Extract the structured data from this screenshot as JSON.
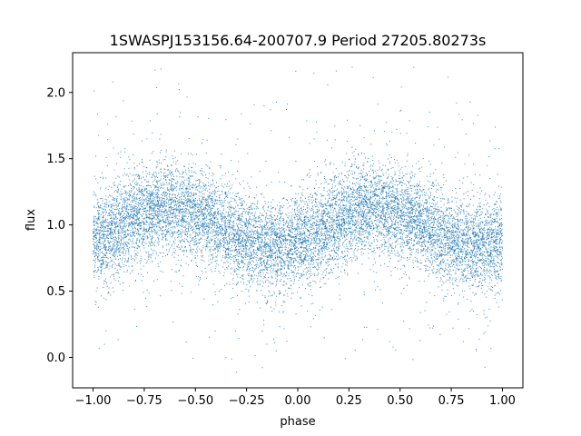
{
  "chart_data": {
    "type": "scatter",
    "title": "1SWASPJ153156.64-200707.9 Period 27205.80273s",
    "xlabel": "phase",
    "ylabel": "flux",
    "xlim": [
      -1.1,
      1.1
    ],
    "ylim": [
      -0.23,
      2.3
    ],
    "xticks": [
      -1.0,
      -0.75,
      -0.5,
      -0.25,
      0.0,
      0.25,
      0.5,
      0.75,
      1.0
    ],
    "xtick_labels": [
      "−1.00",
      "−0.75",
      "−0.50",
      "−0.25",
      "0.00",
      "0.25",
      "0.50",
      "0.75",
      "1.00"
    ],
    "yticks": [
      0.0,
      0.5,
      1.0,
      1.5,
      2.0
    ],
    "ytick_labels": [
      "0.0",
      "0.5",
      "1.0",
      "1.5",
      "2.0"
    ],
    "grid": false,
    "point_color": "#1f77b4",
    "series": [
      {
        "x_range": [
          -1.0,
          1.0
        ],
        "model": "sinusoid, two cycles across phase range",
        "mean": 0.98,
        "amplitude": 0.14,
        "peaks_at_phase": [
          -0.62,
          0.38
        ],
        "troughs_at_phase": [
          -0.12,
          0.88
        ],
        "scatter_sigma": 0.17,
        "clip_max": 2.2,
        "x": [
          -1.0,
          -0.9,
          -0.8,
          -0.7,
          -0.6,
          -0.5,
          -0.4,
          -0.3,
          -0.2,
          -0.1,
          0.0,
          0.1,
          0.2,
          0.3,
          0.4,
          0.5,
          0.6,
          0.7,
          0.8,
          0.9,
          1.0
        ],
        "y": [
          0.91,
          0.95,
          1.04,
          1.11,
          1.12,
          1.09,
          1.01,
          0.93,
          0.86,
          0.84,
          0.87,
          0.95,
          1.04,
          1.11,
          1.12,
          1.09,
          1.01,
          0.93,
          0.86,
          0.84,
          0.87
        ]
      }
    ]
  }
}
